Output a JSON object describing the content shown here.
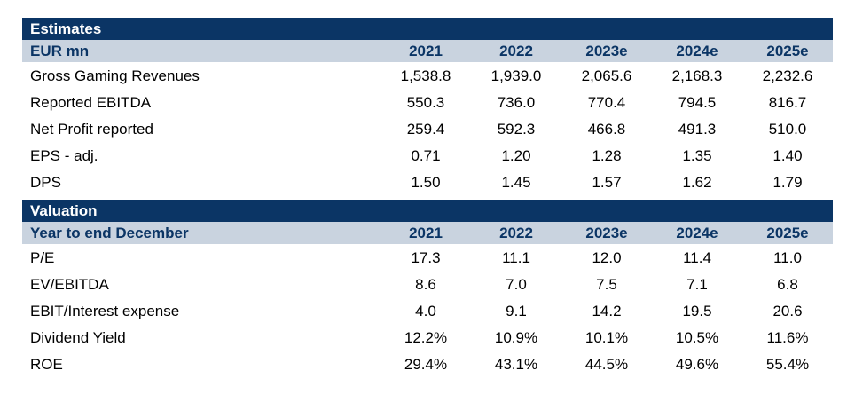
{
  "estimates": {
    "title": "Estimates",
    "header": {
      "label": "EUR mn",
      "years": [
        "2021",
        "2022",
        "2023e",
        "2024e",
        "2025e"
      ]
    },
    "rows": [
      {
        "label": "Gross Gaming Revenues",
        "values": [
          "1,538.8",
          "1,939.0",
          "2,065.6",
          "2,168.3",
          "2,232.6"
        ]
      },
      {
        "label": "Reported EBITDA",
        "values": [
          "550.3",
          "736.0",
          "770.4",
          "794.5",
          "816.7"
        ]
      },
      {
        "label": "Net Profit reported",
        "values": [
          "259.4",
          "592.3",
          "466.8",
          "491.3",
          "510.0"
        ]
      },
      {
        "label": "EPS - adj.",
        "values": [
          "0.71",
          "1.20",
          "1.28",
          "1.35",
          "1.40"
        ]
      },
      {
        "label": "DPS",
        "values": [
          "1.50",
          "1.45",
          "1.57",
          "1.62",
          "1.79"
        ]
      }
    ]
  },
  "valuation": {
    "title": "Valuation",
    "header": {
      "label": "Year to end December",
      "years": [
        "2021",
        "2022",
        "2023e",
        "2024e",
        "2025e"
      ]
    },
    "rows": [
      {
        "label": "P/E",
        "values": [
          "17.3",
          "11.1",
          "12.0",
          "11.4",
          "11.0"
        ]
      },
      {
        "label": "EV/EBITDA",
        "values": [
          "8.6",
          "7.0",
          "7.5",
          "7.1",
          "6.8"
        ]
      },
      {
        "label": "EBIT/Interest expense",
        "values": [
          "4.0",
          "9.1",
          "14.2",
          "19.5",
          "20.6"
        ]
      },
      {
        "label": "Dividend Yield",
        "values": [
          "12.2%",
          "10.9%",
          "10.1%",
          "10.5%",
          "11.6%"
        ]
      },
      {
        "label": "ROE",
        "values": [
          "29.4%",
          "43.1%",
          "44.5%",
          "49.6%",
          "55.4%"
        ]
      }
    ]
  },
  "colors": {
    "title_bg": "#0b3565",
    "header_bg": "#c9d3df",
    "header_text": "#0b3565"
  }
}
